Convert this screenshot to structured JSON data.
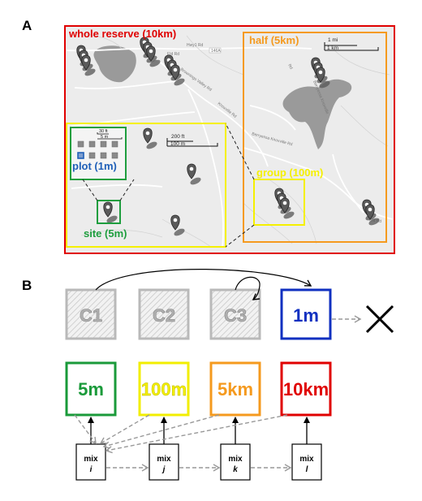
{
  "panels": {
    "a_label": "A",
    "b_label": "B"
  },
  "panel_a": {
    "map": {
      "scale_top_mi": "1 mi",
      "scale_top_km": "1 km",
      "scale_mid_ft": "200 ft",
      "scale_mid_m": "100 m",
      "scale_inset_ft": "30 ft",
      "scale_inset_m": "5 m",
      "road_labels": [
        "Hwy1 Rd",
        "146A",
        "Eld Rd",
        "Brownings Valley Rd",
        "Knoxville Rd",
        "Rd",
        "Berryessa Knoxville",
        "Berryessa Knoxville Rd",
        "Eld Rd"
      ]
    },
    "regions": {
      "whole": "whole reserve (10km)",
      "half": "half (5km)",
      "group": "group (100m)",
      "site": "site (5m)",
      "plot": "plot (1m)"
    },
    "colors": {
      "whole": "#e00000",
      "half": "#f59a1e",
      "group": "#f5f000",
      "site": "#1e9e3e",
      "plot": "#2060b8"
    }
  },
  "panel_b": {
    "controls": [
      "C1",
      "C2",
      "C3"
    ],
    "plot_box": {
      "label": "1m",
      "color": "#1030c0"
    },
    "exclude_icon": "x-mark-icon",
    "scale_boxes": [
      {
        "label": "5m",
        "color": "#1a9a3a"
      },
      {
        "label": "100m",
        "color": "#f2ee00"
      },
      {
        "label": "5km",
        "color": "#f59a1e"
      },
      {
        "label": "10km",
        "color": "#e00000"
      }
    ],
    "mix_boxes": [
      {
        "word": "mix",
        "var": "i"
      },
      {
        "word": "mix",
        "var": "j"
      },
      {
        "word": "mix",
        "var": "k"
      },
      {
        "word": "mix",
        "var": "l"
      }
    ]
  }
}
